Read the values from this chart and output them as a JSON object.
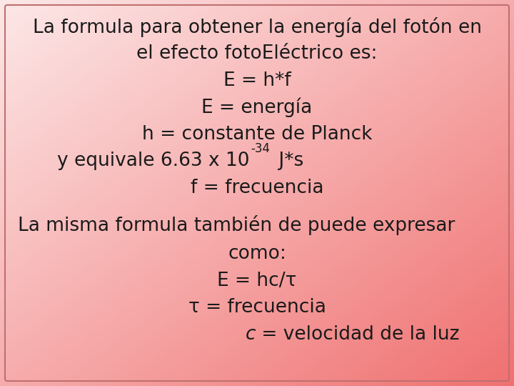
{
  "bg_color_topleft": "#fde8e8",
  "bg_color_bottomright": "#f08080",
  "text_color": "#1a1a1a",
  "box_edge_color": "#c07070",
  "font_size": 19,
  "sup_font_size": 12,
  "line1": "La formula para obtener la energía del fotón en",
  "line2": "el efecto fotoEléctrico es:",
  "line3": "E = h*f",
  "line4": "E = energía",
  "line5": "h = constante de Planck",
  "planck_main": "y equivale 6.63 x 10",
  "planck_sup": "-34",
  "planck_suffix": " J*s",
  "line7": "f = frecuencia",
  "line8": "La misma formula también de puede expresar",
  "line9": "como:",
  "line10": "E = hc/τ",
  "line11": "τ = frecuencia",
  "line12_italic": "c",
  "line12_rest": " = velocidad de la luz",
  "line2_fixed": "el efecto fotoEléctrico es:"
}
